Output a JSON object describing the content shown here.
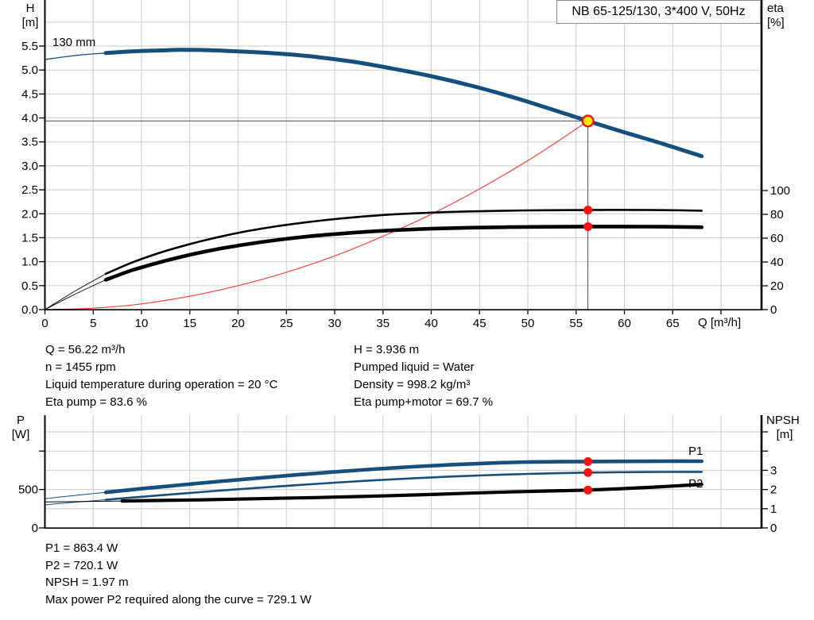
{
  "title_box": "NB 65-125/130, 3*400 V, 50Hz",
  "colors": {
    "blue": "#174f7c",
    "black": "#000000",
    "red": "#f54545",
    "grid": "#cbcbcb",
    "crosshair": "#4d4d4d",
    "marker_red": "#f51414",
    "marker_yellow": "#ffe800",
    "axis": "#000000"
  },
  "chart_data": [
    {
      "id": "head-chart",
      "type": "line",
      "title": "NB 65-125/130, 3*400 V, 50Hz",
      "curve_label": "130 mm",
      "x_axis": {
        "label": "Q [m³/h]",
        "range": [
          0,
          74.2
        ],
        "ticks": [
          0,
          5,
          10,
          15,
          20,
          25,
          30,
          35,
          40,
          45,
          50,
          55,
          60,
          65
        ],
        "unlabeled_ticks": [
          70
        ],
        "grid": true
      },
      "y_left": {
        "label": [
          "H",
          "[m]"
        ],
        "range": [
          0,
          6.43
        ],
        "tick_step": 0.5,
        "ticks": [
          "0.0",
          "0.5",
          "1.0",
          "1.5",
          "2.0",
          "2.5",
          "3.0",
          "3.5",
          "4.0",
          "4.5",
          "5.0",
          "5.5"
        ],
        "grid": true
      },
      "y_right": {
        "label": [
          "eta",
          "[%]"
        ],
        "range": [
          0,
          100
        ],
        "ticks": [
          0,
          20,
          40,
          60,
          80,
          100
        ]
      },
      "duty_point": {
        "q": 56.22,
        "h": 3.936
      },
      "marker_points": [
        {
          "q": 56.22,
          "eta": 83.6
        },
        {
          "q": 56.22,
          "eta": 69.7
        }
      ],
      "series": [
        {
          "name": "system-curve",
          "axis": "left",
          "color_key": "red",
          "points": [
            [
              0,
              0
            ],
            [
              5,
              0.03
            ],
            [
              10,
              0.12
            ],
            [
              15,
              0.28
            ],
            [
              20,
              0.5
            ],
            [
              25,
              0.78
            ],
            [
              30,
              1.12
            ],
            [
              35,
              1.53
            ],
            [
              40,
              1.99
            ],
            [
              45,
              2.52
            ],
            [
              50,
              3.11
            ],
            [
              53,
              3.5
            ],
            [
              56.22,
              3.936
            ]
          ]
        },
        {
          "name": "eta-pump-curve",
          "axis": "right",
          "color_key": "black",
          "min_flow_split": 6.3,
          "points": [
            [
              0,
              0
            ],
            [
              3,
              15
            ],
            [
              6.3,
              30
            ],
            [
              9,
              39.5
            ],
            [
              12,
              48
            ],
            [
              15,
              55
            ],
            [
              18,
              61
            ],
            [
              21,
              66
            ],
            [
              24,
              70
            ],
            [
              27,
              73.3
            ],
            [
              30,
              76
            ],
            [
              33,
              78.2
            ],
            [
              36,
              79.9
            ],
            [
              40,
              81.5
            ],
            [
              44,
              82.5
            ],
            [
              48,
              83.1
            ],
            [
              52,
              83.45
            ],
            [
              56.22,
              83.6
            ],
            [
              60,
              83.7
            ],
            [
              64,
              83.55
            ],
            [
              68,
              83.1
            ]
          ]
        },
        {
          "name": "eta-pump-motor-curve",
          "axis": "right",
          "color_key": "black",
          "min_flow_split": 6.3,
          "points": [
            [
              0,
              0
            ],
            [
              3,
              12.5
            ],
            [
              6.3,
              25
            ],
            [
              9,
              33
            ],
            [
              12,
              40
            ],
            [
              15,
              46
            ],
            [
              18,
              51
            ],
            [
              21,
              55
            ],
            [
              24,
              58.4
            ],
            [
              27,
              61.2
            ],
            [
              30,
              63.4
            ],
            [
              33,
              65.2
            ],
            [
              36,
              66.6
            ],
            [
              40,
              67.9
            ],
            [
              44,
              68.8
            ],
            [
              48,
              69.3
            ],
            [
              52,
              69.55
            ],
            [
              56.22,
              69.7
            ],
            [
              60,
              69.75
            ],
            [
              64,
              69.6
            ],
            [
              68,
              69.2
            ]
          ]
        },
        {
          "name": "head-curve",
          "axis": "left",
          "color_key": "blue",
          "min_flow_split": 6.3,
          "points": [
            [
              0,
              5.22
            ],
            [
              2,
              5.275
            ],
            [
              4,
              5.32
            ],
            [
              6.3,
              5.355
            ],
            [
              9,
              5.39
            ],
            [
              12,
              5.41
            ],
            [
              14,
              5.42
            ],
            [
              17,
              5.415
            ],
            [
              20,
              5.39
            ],
            [
              24,
              5.345
            ],
            [
              28,
              5.275
            ],
            [
              32,
              5.17
            ],
            [
              36,
              5.03
            ],
            [
              40,
              4.87
            ],
            [
              44,
              4.68
            ],
            [
              48,
              4.46
            ],
            [
              52,
              4.21
            ],
            [
              56.22,
              3.936
            ],
            [
              60,
              3.7
            ],
            [
              64,
              3.46
            ],
            [
              68,
              3.2
            ]
          ]
        }
      ]
    },
    {
      "id": "power-npsh-chart",
      "type": "line",
      "x_axis": {
        "label": "",
        "range": [
          0,
          74.2
        ],
        "ticks": [],
        "grid": true
      },
      "y_left": {
        "label": [
          "P",
          "[W]"
        ],
        "range": [
          0,
          1450
        ],
        "tick_values": [
          0,
          500,
          1000
        ],
        "tick_labels": [
          "0",
          "500",
          ""
        ],
        "grid": true
      },
      "y_right": {
        "label": [
          "NPSH",
          "[m]"
        ],
        "range": [
          0,
          5.8
        ],
        "tick_values": [
          0,
          1,
          2,
          3,
          4,
          5
        ],
        "tick_labels": [
          "0",
          "1",
          "2",
          "3",
          "",
          ""
        ]
      },
      "series_labels": [
        "P1",
        "P2"
      ],
      "marker_points": [
        {
          "q": 56.22,
          "p": 863.4
        },
        {
          "q": 56.22,
          "p": 720.1
        },
        {
          "q": 56.22,
          "npsh": 1.97
        }
      ],
      "series": [
        {
          "name": "p1-curve",
          "axis": "left",
          "color_key": "blue",
          "min_flow_split": 6.3,
          "points": [
            [
              0,
              380
            ],
            [
              3,
              421
            ],
            [
              6.3,
              463
            ],
            [
              10,
              510
            ],
            [
              14,
              558
            ],
            [
              18,
              604
            ],
            [
              22,
              648
            ],
            [
              26,
              690
            ],
            [
              30,
              729
            ],
            [
              34,
              764
            ],
            [
              38,
              795
            ],
            [
              42,
              822
            ],
            [
              46,
              843
            ],
            [
              50,
              857
            ],
            [
              53,
              862
            ],
            [
              56.22,
              863.4
            ],
            [
              60,
              866
            ],
            [
              64,
              868
            ],
            [
              68,
              868
            ]
          ]
        },
        {
          "name": "p2-curve",
          "axis": "left",
          "color_key": "blue",
          "min_flow_split": 6.3,
          "points": [
            [
              0,
              300
            ],
            [
              3,
              333
            ],
            [
              6.3,
              367
            ],
            [
              10,
              405
            ],
            [
              14,
              445
            ],
            [
              18,
              484
            ],
            [
              22,
              521
            ],
            [
              26,
              556
            ],
            [
              30,
              589
            ],
            [
              34,
              619
            ],
            [
              38,
              645
            ],
            [
              42,
              668
            ],
            [
              46,
              687
            ],
            [
              50,
              702
            ],
            [
              53,
              712
            ],
            [
              56.22,
              720.1
            ],
            [
              60,
              725
            ],
            [
              64,
              728
            ],
            [
              68,
              729.1
            ]
          ]
        },
        {
          "name": "npsh-curve",
          "axis": "right",
          "color_key": "black",
          "min_flow_split": 6.3,
          "points": [
            [
              0,
              1.35
            ],
            [
              4,
              1.37
            ],
            [
              8,
              1.4
            ],
            [
              12,
              1.43
            ],
            [
              16,
              1.46
            ],
            [
              20,
              1.5
            ],
            [
              24,
              1.54
            ],
            [
              28,
              1.58
            ],
            [
              32,
              1.63
            ],
            [
              36,
              1.68
            ],
            [
              40,
              1.74
            ],
            [
              44,
              1.81
            ],
            [
              48,
              1.87
            ],
            [
              52,
              1.92
            ],
            [
              56.22,
              1.97
            ],
            [
              60,
              2.05
            ],
            [
              64,
              2.15
            ],
            [
              68,
              2.27
            ]
          ]
        }
      ]
    }
  ],
  "info_top": {
    "left": [
      "Q = 56.22 m³/h",
      "n = 1455 rpm",
      "Liquid temperature during operation = 20 °C",
      "Eta pump = 83.6 %"
    ],
    "right": [
      "H = 3.936 m",
      "Pumped liquid = Water",
      "Density = 998.2 kg/m³",
      "Eta pump+motor = 69.7 %"
    ]
  },
  "info_bottom": {
    "lines": [
      "P1 = 863.4 W",
      "P2 = 720.1 W",
      "NPSH = 1.97 m",
      "Max power P2 required along the curve = 729.1 W"
    ]
  }
}
